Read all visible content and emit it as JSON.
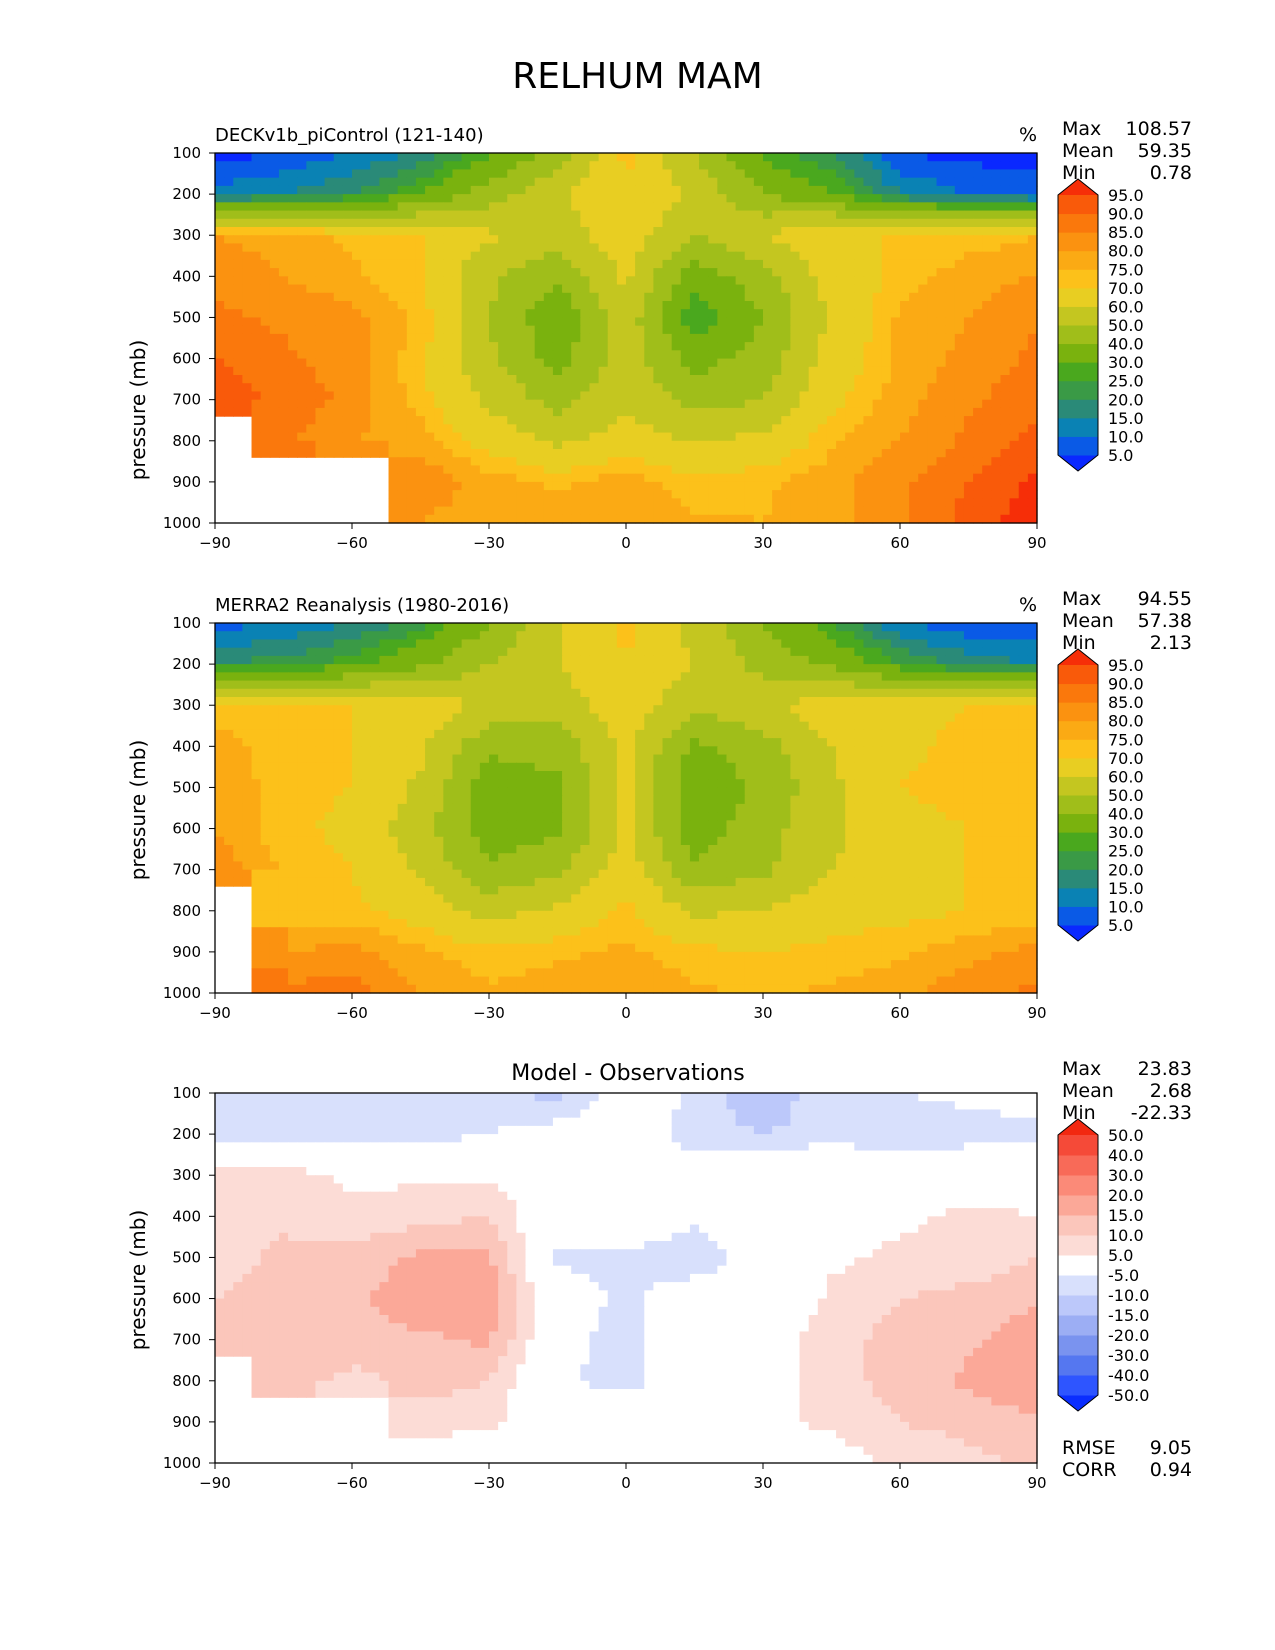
{
  "page": {
    "title": "RELHUM MAM"
  },
  "colormaps": {
    "absolute": {
      "colors": [
        "#0a28ff",
        "#0a5ae6",
        "#0a82b4",
        "#2a8a78",
        "#3a9a46",
        "#4aa81e",
        "#7ab20e",
        "#a0be1a",
        "#c4c620",
        "#e8ce22",
        "#fcc11a",
        "#fbaa14",
        "#fb9210",
        "#fa780c",
        "#f95a0a",
        "#f62e08"
      ],
      "ticks": [
        "95.0",
        "90.0",
        "85.0",
        "80.0",
        "75.0",
        "70.0",
        "60.0",
        "50.0",
        "40.0",
        "30.0",
        "25.0",
        "20.0",
        "15.0",
        "10.0",
        "5.0"
      ]
    },
    "difference": {
      "colors": [
        "#0a2dff",
        "#2e55ff",
        "#5577f0",
        "#7a93ef",
        "#9caef4",
        "#bcc8fa",
        "#d8e0fc",
        "#ffffff",
        "#fcdcd6",
        "#fbc6bb",
        "#fba898",
        "#fb8a78",
        "#f86a58",
        "#f54a38",
        "#f22810"
      ],
      "ticks": [
        "50.0",
        "40.0",
        "30.0",
        "20.0",
        "15.0",
        "10.0",
        "5.0",
        "-5.0",
        "-10.0",
        "-15.0",
        "-20.0",
        "-30.0",
        "-40.0",
        "-50.0"
      ]
    }
  },
  "panels": [
    {
      "id": "model",
      "title_left": "DECKv1b_piControl (121-140)",
      "title_center": "",
      "units": "%",
      "stats": [
        {
          "label": "Max",
          "value": "108.57"
        },
        {
          "label": "Mean",
          "value": "59.35"
        },
        {
          "label": "Min",
          "value": "0.78"
        }
      ],
      "footer_stats": [],
      "colormap": "absolute"
    },
    {
      "id": "obs",
      "title_left": "MERRA2 Reanalysis (1980-2016)",
      "title_center": "",
      "units": "%",
      "stats": [
        {
          "label": "Max",
          "value": "94.55"
        },
        {
          "label": "Mean",
          "value": "57.38"
        },
        {
          "label": "Min",
          "value": "2.13"
        }
      ],
      "footer_stats": [],
      "colormap": "absolute"
    },
    {
      "id": "diff",
      "title_left": "",
      "title_center": "Model - Observations",
      "units": "",
      "stats": [
        {
          "label": "Max",
          "value": "23.83"
        },
        {
          "label": "Mean",
          "value": "2.68"
        },
        {
          "label": "Min",
          "value": "-22.33"
        }
      ],
      "footer_stats": [
        {
          "label": "RMSE",
          "value": "9.05"
        },
        {
          "label": "CORR",
          "value": "0.94"
        }
      ],
      "colormap": "difference"
    }
  ],
  "chart_data": [
    {
      "type": "heatmap",
      "title": "DECKv1b_piControl (121-140)",
      "ylabel": "pressure (mb)",
      "xlabel": "",
      "units": "%",
      "x_ticks": [
        "−90",
        "−60",
        "−30",
        "0",
        "30",
        "60",
        "90"
      ],
      "y_ticks": [
        "100",
        "200",
        "300",
        "400",
        "500",
        "600",
        "700",
        "800",
        "900",
        "1000"
      ],
      "xlim": [
        -90,
        90
      ],
      "ylim": [
        1000,
        100
      ],
      "lat": [
        -90,
        -75,
        -60,
        -45,
        -30,
        -15,
        0,
        15,
        30,
        45,
        60,
        75,
        90
      ],
      "lev": [
        100,
        200,
        300,
        400,
        500,
        600,
        700,
        800,
        900,
        1000
      ],
      "values": [
        [
          3,
          5,
          10,
          16,
          28,
          45,
          72,
          50,
          28,
          20,
          5,
          3,
          3
        ],
        [
          12,
          15,
          20,
          30,
          45,
          58,
          70,
          58,
          40,
          30,
          15,
          10,
          8
        ],
        [
          80,
          78,
          74,
          70,
          62,
          55,
          66,
          50,
          60,
          70,
          70,
          72,
          75
        ],
        [
          84,
          80,
          76,
          70,
          52,
          42,
          62,
          34,
          46,
          64,
          72,
          78,
          80
        ],
        [
          86,
          84,
          82,
          74,
          50,
          32,
          56,
          24,
          40,
          62,
          76,
          80,
          85
        ],
        [
          90,
          86,
          82,
          72,
          52,
          36,
          56,
          36,
          44,
          64,
          76,
          82,
          86
        ],
        [
          94,
          88,
          84,
          72,
          58,
          46,
          58,
          46,
          50,
          68,
          78,
          84,
          88
        ],
        [
          null,
          86,
          80,
          78,
          66,
          58,
          64,
          60,
          62,
          74,
          80,
          86,
          92
        ],
        [
          null,
          null,
          null,
          84,
          78,
          74,
          78,
          72,
          74,
          78,
          84,
          90,
          96
        ],
        [
          null,
          null,
          null,
          80,
          76,
          78,
          80,
          76,
          75,
          78,
          84,
          92,
          98
        ]
      ]
    },
    {
      "type": "heatmap",
      "title": "MERRA2 Reanalysis (1980-2016)",
      "ylabel": "pressure (mb)",
      "xlabel": "",
      "units": "%",
      "x_ticks": [
        "−90",
        "−60",
        "−30",
        "0",
        "30",
        "60",
        "90"
      ],
      "y_ticks": [
        "100",
        "200",
        "300",
        "400",
        "500",
        "600",
        "700",
        "800",
        "900",
        "1000"
      ],
      "xlim": [
        -90,
        90
      ],
      "ylim": [
        1000,
        100
      ],
      "lat": [
        -90,
        -75,
        -60,
        -45,
        -30,
        -15,
        0,
        15,
        30,
        45,
        60,
        75,
        90
      ],
      "lev": [
        100,
        200,
        300,
        400,
        500,
        600,
        700,
        800,
        900,
        1000
      ],
      "values": [
        [
          8,
          10,
          15,
          22,
          40,
          58,
          72,
          56,
          40,
          25,
          10,
          6,
          5
        ],
        [
          20,
          22,
          28,
          38,
          50,
          60,
          70,
          60,
          46,
          38,
          25,
          18,
          15
        ],
        [
          72,
          70,
          70,
          66,
          58,
          55,
          66,
          52,
          58,
          66,
          68,
          70,
          72
        ],
        [
          78,
          72,
          70,
          62,
          42,
          44,
          62,
          38,
          46,
          60,
          68,
          72,
          75
        ],
        [
          80,
          72,
          70,
          58,
          34,
          38,
          62,
          32,
          42,
          58,
          70,
          74,
          75
        ],
        [
          80,
          72,
          68,
          54,
          34,
          38,
          62,
          34,
          46,
          58,
          66,
          70,
          72
        ],
        [
          84,
          74,
          70,
          58,
          42,
          48,
          66,
          42,
          48,
          60,
          66,
          70,
          70
        ],
        [
          null,
          72,
          72,
          66,
          56,
          62,
          72,
          58,
          60,
          66,
          68,
          70,
          72
        ],
        [
          null,
          80,
          82,
          76,
          72,
          74,
          76,
          72,
          70,
          72,
          74,
          78,
          82
        ],
        [
          null,
          86,
          88,
          80,
          76,
          78,
          80,
          76,
          74,
          76,
          78,
          84,
          86
        ]
      ]
    },
    {
      "type": "heatmap",
      "title": "Model - Observations",
      "ylabel": "pressure (mb)",
      "xlabel": "",
      "units": "",
      "x_ticks": [
        "−90",
        "−60",
        "−30",
        "0",
        "30",
        "60",
        "90"
      ],
      "y_ticks": [
        "100",
        "200",
        "300",
        "400",
        "500",
        "600",
        "700",
        "800",
        "900",
        "1000"
      ],
      "xlim": [
        -90,
        90
      ],
      "ylim": [
        1000,
        100
      ],
      "lat": [
        -90,
        -75,
        -60,
        -45,
        -30,
        -15,
        0,
        15,
        30,
        45,
        60,
        75,
        90
      ],
      "lev": [
        100,
        200,
        300,
        400,
        500,
        600,
        700,
        800,
        900,
        1000
      ],
      "values": [
        [
          -5,
          -5,
          -5,
          -6,
          -8,
          -12,
          0,
          -6,
          -15,
          -5,
          -5,
          -3,
          -2
        ],
        [
          -8,
          -8,
          -8,
          -8,
          -5,
          -2,
          0,
          -8,
          -10,
          -8,
          -10,
          -8,
          -7
        ],
        [
          8,
          8,
          4,
          4,
          4,
          0,
          0,
          -2,
          2,
          4,
          2,
          2,
          3
        ],
        [
          6,
          8,
          6,
          8,
          10,
          -2,
          0,
          -4,
          0,
          4,
          4,
          6,
          5
        ],
        [
          6,
          12,
          12,
          16,
          16,
          -6,
          -6,
          -8,
          -2,
          4,
          6,
          6,
          10
        ],
        [
          10,
          14,
          14,
          18,
          18,
          -2,
          -6,
          -2,
          -2,
          6,
          10,
          12,
          14
        ],
        [
          10,
          14,
          14,
          14,
          16,
          -2,
          -8,
          4,
          2,
          8,
          12,
          14,
          18
        ],
        [
          null,
          14,
          8,
          12,
          10,
          -4,
          -8,
          2,
          2,
          8,
          12,
          16,
          20
        ],
        [
          null,
          null,
          null,
          8,
          6,
          0,
          2,
          0,
          4,
          6,
          10,
          12,
          14
        ],
        [
          null,
          null,
          null,
          0,
          0,
          4,
          0,
          0,
          1,
          2,
          6,
          8,
          12
        ]
      ]
    }
  ]
}
